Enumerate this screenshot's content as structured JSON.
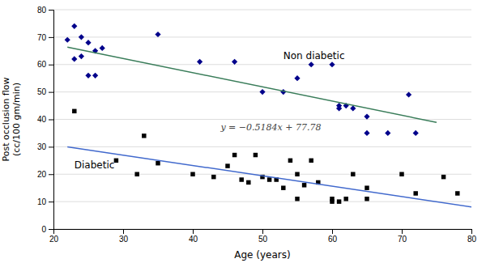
{
  "chart_data": {
    "type": "scatter",
    "xlabel": "Age (years)",
    "ylabel": "Post occlusion flow\n(cc/100 gm/min)",
    "xlim": [
      20,
      80
    ],
    "ylim": [
      0,
      80
    ],
    "xticks": [
      20,
      30,
      40,
      50,
      60,
      70,
      80
    ],
    "yticks": [
      0,
      10,
      20,
      30,
      40,
      50,
      60,
      70,
      80
    ],
    "grid": "y",
    "series": [
      {
        "type": "scatter",
        "marker": "diamond",
        "color": "#00008b",
        "x": [
          22,
          23,
          23,
          24,
          24,
          25,
          25,
          26,
          26,
          27,
          35,
          41,
          46,
          50,
          53,
          55,
          57,
          60,
          61,
          61,
          62,
          63,
          65,
          65,
          68,
          71,
          72
        ],
        "values": [
          69,
          74,
          62,
          63,
          70,
          68,
          56,
          56,
          65,
          66,
          71,
          61,
          61,
          50,
          50,
          55,
          60,
          60,
          45,
          44,
          45,
          44,
          41,
          35,
          35,
          49,
          35
        ]
      },
      {
        "type": "scatter",
        "marker": "square",
        "color": "#000000",
        "x": [
          23,
          29,
          32,
          33,
          35,
          40,
          43,
          45,
          46,
          47,
          48,
          49,
          50,
          51,
          52,
          53,
          54,
          55,
          55,
          56,
          57,
          58,
          60,
          60,
          61,
          62,
          63,
          65,
          65,
          70,
          72,
          76,
          78
        ],
        "values": [
          43,
          25,
          20,
          34,
          24,
          20,
          19,
          23,
          27,
          18,
          17,
          27,
          19,
          18,
          18,
          15,
          25,
          11,
          20,
          16,
          25,
          17,
          11,
          10,
          10,
          11,
          20,
          15,
          11,
          20,
          13,
          19,
          13
        ]
      },
      {
        "type": "line",
        "line_style": "solid",
        "color": "#3a7d5a",
        "x": [
          22,
          75
        ],
        "values": [
          66.3752,
          38.9
        ]
      },
      {
        "type": "line",
        "line_style": "solid",
        "color": "#4169cd",
        "x": [
          22,
          80
        ],
        "values": [
          29.984,
          8.06
        ]
      }
    ],
    "annotations": [
      {
        "text": "y = −0.5184x + 77.78",
        "x": 44,
        "y": 36
      },
      {
        "text": "Non diabetic",
        "x": 53,
        "y": 62
      },
      {
        "text": "Diabetic",
        "x": 23,
        "y": 22
      }
    ]
  }
}
